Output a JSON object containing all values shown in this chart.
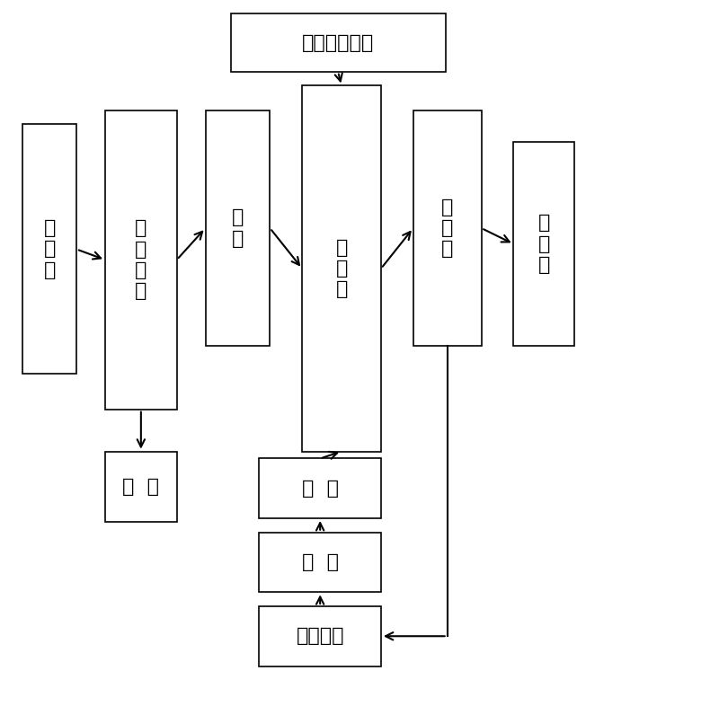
{
  "bg_color": "#ffffff",
  "box_edge_color": "#000000",
  "arrow_color": "#000000",
  "font_size_main": 16,
  "font_size_small": 15,
  "boxes": {
    "ganzhazha": {
      "xl": 0.03,
      "yt": 0.175,
      "xr": 0.105,
      "yb": 0.53,
      "label": "甘\n蔗\n渣",
      "fs": 16
    },
    "qingxi": {
      "xl": 0.145,
      "yt": 0.155,
      "xr": 0.245,
      "yb": 0.58,
      "label": "清\n洗\n除\n杂",
      "fs": 16
    },
    "fengsui": {
      "xl": 0.285,
      "yt": 0.155,
      "xr": 0.375,
      "yb": 0.49,
      "label": "粉\n碎",
      "fs": 16
    },
    "cuiqu": {
      "xl": 0.42,
      "yt": 0.12,
      "xr": 0.53,
      "yb": 0.64,
      "label": "萃\n取\n釜",
      "fs": 16
    },
    "fenli": {
      "xl": 0.575,
      "yt": 0.155,
      "xr": 0.67,
      "yb": 0.49,
      "label": "分\n离\n釜",
      "fs": 16
    },
    "extract": {
      "xl": 0.715,
      "yt": 0.2,
      "xr": 0.8,
      "yb": 0.49,
      "label": "萃\n取\n物",
      "fs": 16
    },
    "chaosheng": {
      "xl": 0.32,
      "yt": 0.018,
      "xr": 0.62,
      "yb": 0.1,
      "label": "超声波发生器",
      "fs": 16
    },
    "zazhi": {
      "xl": 0.145,
      "yt": 0.64,
      "xr": 0.245,
      "yb": 0.74,
      "label": "杂  质",
      "fs": 16
    },
    "jiaya": {
      "xl": 0.36,
      "yt": 0.65,
      "xr": 0.53,
      "yb": 0.735,
      "label": "加  压",
      "fs": 16
    },
    "lenque": {
      "xl": 0.36,
      "yt": 0.755,
      "xr": 0.53,
      "yb": 0.84,
      "label": "冷  却",
      "fs": 16
    },
    "co2": {
      "xl": 0.36,
      "yt": 0.86,
      "xr": 0.53,
      "yb": 0.945,
      "label": "二氧化碳",
      "fs": 16
    }
  }
}
